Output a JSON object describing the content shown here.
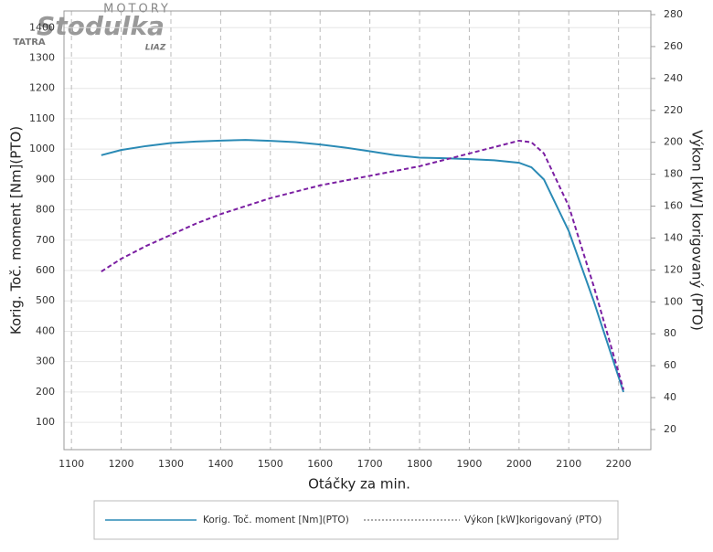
{
  "chart_data": {
    "type": "line",
    "logo": {
      "top": "MOTORY",
      "name": "Stodulka",
      "left": "TATRA",
      "right": "LIAZ"
    },
    "xlabel": "Otáčky za min.",
    "ylabel": "Korig. Toč. moment [Nm](PTO)",
    "y2label": "Výkon [kW] korigovaný (PTO)",
    "x": [
      1160,
      1200,
      1250,
      1300,
      1350,
      1400,
      1450,
      1500,
      1550,
      1600,
      1650,
      1700,
      1750,
      1800,
      1850,
      1900,
      1950,
      2000,
      2025,
      2050,
      2100,
      2150,
      2210
    ],
    "series": [
      {
        "name": "Korig. Toč. moment [Nm](PTO)",
        "color": "#2a8ab5",
        "dash": false,
        "values": [
          980,
          997,
          1010,
          1020,
          1025,
          1028,
          1030,
          1027,
          1023,
          1015,
          1005,
          993,
          980,
          972,
          970,
          967,
          963,
          955,
          940,
          900,
          730,
          500,
          200
        ]
      },
      {
        "name": "Výkon [kW]korigovaný (PTO)",
        "color": "#7b1fa2",
        "dash": true,
        "axis": "y2",
        "values": [
          119,
          127,
          135,
          142,
          149,
          155,
          160,
          165,
          169,
          173,
          176,
          179,
          182,
          185,
          189,
          193,
          197,
          201,
          200,
          193,
          160,
          110,
          45
        ]
      }
    ],
    "xlim": [
      1085,
      2265
    ],
    "xticks": [
      1100,
      1200,
      1300,
      1400,
      1500,
      1600,
      1700,
      1800,
      1900,
      2000,
      2100,
      2200
    ],
    "ylim": [
      10,
      1455
    ],
    "yticks": [
      100,
      200,
      300,
      400,
      500,
      600,
      700,
      800,
      900,
      1000,
      1100,
      1200,
      1300,
      1400
    ],
    "y2lim": [
      7.4,
      282.3
    ],
    "y2ticks": [
      20,
      40,
      60,
      80,
      100,
      120,
      140,
      160,
      180,
      200,
      220,
      240,
      260,
      280
    ],
    "grid": true
  }
}
